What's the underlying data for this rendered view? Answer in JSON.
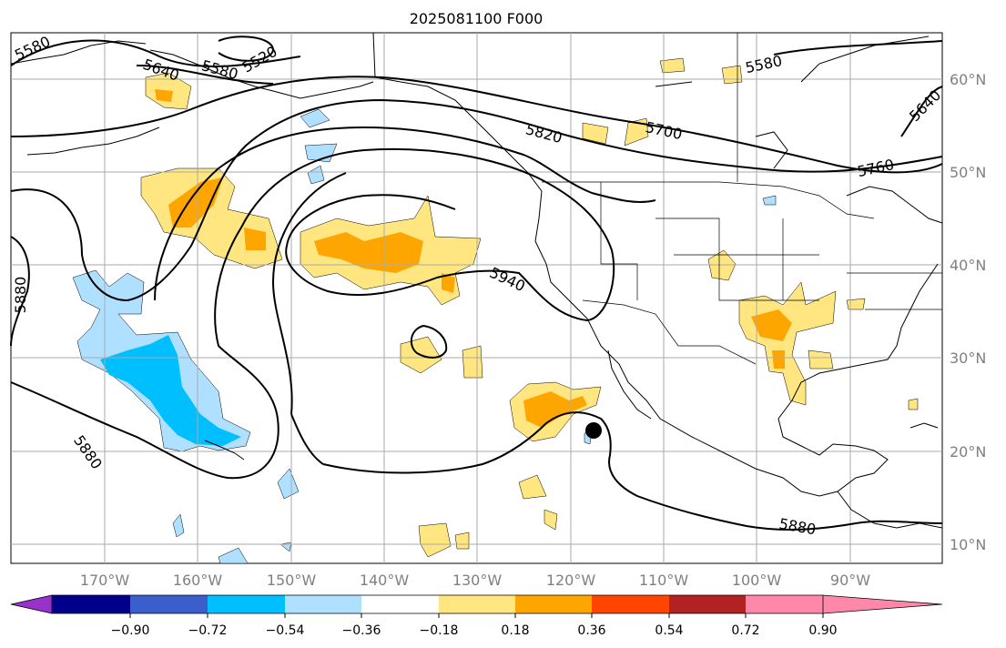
{
  "title": "2025081100 F000",
  "map": {
    "lon_labels": [
      "170°W",
      "160°W",
      "150°W",
      "140°W",
      "130°W",
      "120°W",
      "110°W",
      "100°W",
      "90°W"
    ],
    "lat_labels": [
      "60°N",
      "50°N",
      "40°N",
      "30°N",
      "20°N",
      "10°N"
    ],
    "contour_labels": [
      "5580",
      "5640",
      "5580",
      "5520",
      "5820",
      "5700",
      "5580",
      "5760",
      "5640",
      "5880",
      "5940",
      "5880",
      "5880"
    ],
    "storm_marker": "black-dot"
  },
  "colorbar": {
    "ticks": [
      "−0.90",
      "−0.72",
      "−0.54",
      "−0.36",
      "−0.18",
      "0.18",
      "0.36",
      "0.54",
      "0.72",
      "0.90"
    ],
    "colors": [
      "#9932cc",
      "#00008b",
      "#3a5fcd",
      "#00bfff",
      "#b0e0ff",
      "#ffffff",
      "#ffe680",
      "#ffa500",
      "#ff4500",
      "#b22222",
      "#ff88aa"
    ]
  }
}
